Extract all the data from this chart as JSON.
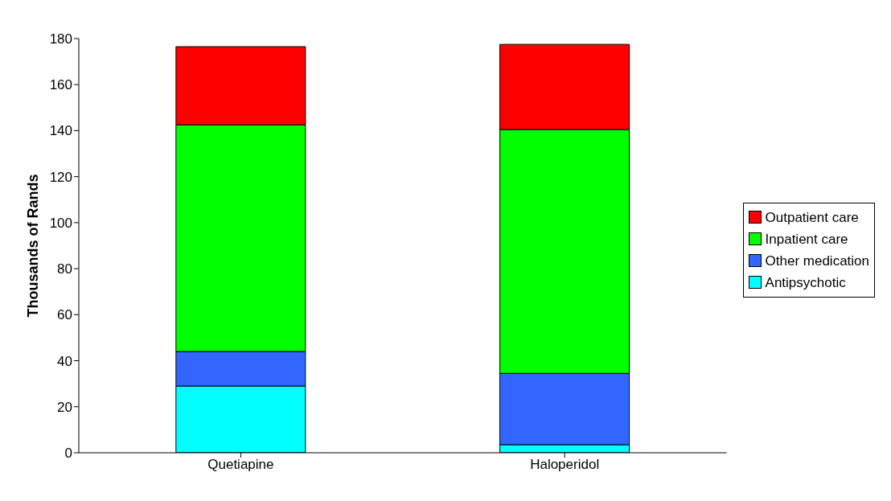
{
  "chart_data": {
    "type": "bar",
    "stacked": true,
    "ylabel": "Thousands of Rands",
    "categories": [
      "Quetiapine",
      "Haloperidol"
    ],
    "series": [
      {
        "name": "Antipsychotic",
        "color": "#00ffff",
        "values": [
          29,
          3.5
        ]
      },
      {
        "name": "Other medication",
        "color": "#3366ff",
        "values": [
          15,
          31
        ]
      },
      {
        "name": "Inpatient care",
        "color": "#00ff00",
        "values": [
          98.5,
          106
        ]
      },
      {
        "name": "Outpatient care",
        "color": "#ff0000",
        "values": [
          34,
          37
        ]
      }
    ],
    "ylim": [
      0,
      180
    ],
    "yticks": [
      0,
      20,
      40,
      60,
      80,
      100,
      120,
      140,
      160,
      180
    ],
    "grid": false,
    "legend": "right"
  }
}
